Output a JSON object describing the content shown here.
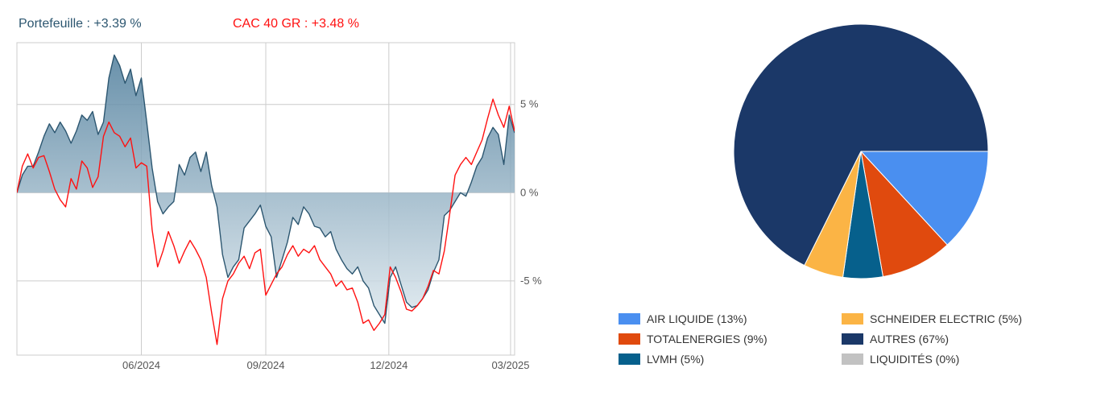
{
  "header": {
    "portfolio_label": "Portefeuille : +3.39 %",
    "benchmark_label": "CAC 40 GR : +3.48 %"
  },
  "colors": {
    "portfolio": "#2c5670",
    "benchmark": "#ff1111",
    "area_top": "#4f7e9c",
    "area_bottom": "#dfe9ef",
    "grid": "#cccccc",
    "axis_text": "#555555"
  },
  "chart_data": [
    {
      "type": "line",
      "series": [
        {
          "name": "Portefeuille : +3.39 %",
          "points": [
            [
              "2024-03-01",
              0.0
            ],
            [
              "2024-03-05",
              1.0
            ],
            [
              "2024-03-09",
              1.5
            ],
            [
              "2024-03-13",
              1.5
            ],
            [
              "2024-03-17",
              2.3
            ],
            [
              "2024-03-21",
              3.2
            ],
            [
              "2024-03-25",
              3.9
            ],
            [
              "2024-03-29",
              3.4
            ],
            [
              "2024-04-02",
              4.0
            ],
            [
              "2024-04-06",
              3.5
            ],
            [
              "2024-04-10",
              2.8
            ],
            [
              "2024-04-14",
              3.5
            ],
            [
              "2024-04-18",
              4.4
            ],
            [
              "2024-04-22",
              4.1
            ],
            [
              "2024-04-26",
              4.6
            ],
            [
              "2024-04-30",
              3.3
            ],
            [
              "2024-05-04",
              4.0
            ],
            [
              "2024-05-08",
              6.5
            ],
            [
              "2024-05-12",
              7.8
            ],
            [
              "2024-05-16",
              7.2
            ],
            [
              "2024-05-20",
              6.2
            ],
            [
              "2024-05-24",
              7.0
            ],
            [
              "2024-05-28",
              5.5
            ],
            [
              "2024-06-01",
              6.5
            ],
            [
              "2024-06-05",
              4.0
            ],
            [
              "2024-06-09",
              1.4
            ],
            [
              "2024-06-13",
              -0.5
            ],
            [
              "2024-06-17",
              -1.2
            ],
            [
              "2024-06-21",
              -0.8
            ],
            [
              "2024-06-25",
              -0.5
            ],
            [
              "2024-06-29",
              1.6
            ],
            [
              "2024-07-03",
              1.0
            ],
            [
              "2024-07-07",
              2.0
            ],
            [
              "2024-07-11",
              2.3
            ],
            [
              "2024-07-15",
              1.2
            ],
            [
              "2024-07-19",
              2.3
            ],
            [
              "2024-07-23",
              0.4
            ],
            [
              "2024-07-27",
              -0.8
            ],
            [
              "2024-07-31",
              -3.5
            ],
            [
              "2024-08-04",
              -4.8
            ],
            [
              "2024-08-08",
              -4.2
            ],
            [
              "2024-08-12",
              -3.8
            ],
            [
              "2024-08-16",
              -2.0
            ],
            [
              "2024-08-20",
              -1.6
            ],
            [
              "2024-08-24",
              -1.2
            ],
            [
              "2024-08-28",
              -0.7
            ],
            [
              "2024-09-01",
              -1.9
            ],
            [
              "2024-09-05",
              -2.5
            ],
            [
              "2024-09-09",
              -4.8
            ],
            [
              "2024-09-13",
              -3.8
            ],
            [
              "2024-09-17",
              -2.8
            ],
            [
              "2024-09-21",
              -1.4
            ],
            [
              "2024-09-25",
              -1.8
            ],
            [
              "2024-09-29",
              -0.8
            ],
            [
              "2024-10-03",
              -1.2
            ],
            [
              "2024-10-07",
              -1.9
            ],
            [
              "2024-10-11",
              -2.0
            ],
            [
              "2024-10-15",
              -2.5
            ],
            [
              "2024-10-19",
              -2.2
            ],
            [
              "2024-10-23",
              -3.2
            ],
            [
              "2024-10-27",
              -3.8
            ],
            [
              "2024-10-31",
              -4.3
            ],
            [
              "2024-11-04",
              -4.6
            ],
            [
              "2024-11-08",
              -4.2
            ],
            [
              "2024-11-12",
              -5.0
            ],
            [
              "2024-11-16",
              -5.4
            ],
            [
              "2024-11-20",
              -6.4
            ],
            [
              "2024-11-24",
              -6.9
            ],
            [
              "2024-11-28",
              -7.4
            ],
            [
              "2024-12-02",
              -4.8
            ],
            [
              "2024-12-06",
              -4.2
            ],
            [
              "2024-12-10",
              -5.2
            ],
            [
              "2024-12-14",
              -6.2
            ],
            [
              "2024-12-18",
              -6.5
            ],
            [
              "2024-12-22",
              -6.4
            ],
            [
              "2024-12-26",
              -6.0
            ],
            [
              "2024-12-30",
              -5.5
            ],
            [
              "2025-01-03",
              -4.5
            ],
            [
              "2025-01-07",
              -3.8
            ],
            [
              "2025-01-11",
              -1.3
            ],
            [
              "2025-01-15",
              -1.0
            ],
            [
              "2025-01-19",
              -0.5
            ],
            [
              "2025-01-23",
              0.0
            ],
            [
              "2025-01-27",
              -0.2
            ],
            [
              "2025-01-31",
              0.6
            ],
            [
              "2025-02-04",
              1.5
            ],
            [
              "2025-02-08",
              2.0
            ],
            [
              "2025-02-12",
              3.1
            ],
            [
              "2025-02-16",
              3.7
            ],
            [
              "2025-02-20",
              3.3
            ],
            [
              "2025-02-24",
              1.6
            ],
            [
              "2025-02-28",
              4.4
            ],
            [
              "2025-03-04",
              3.39
            ]
          ]
        },
        {
          "name": "CAC 40 GR : +3.48 %",
          "points": [
            [
              "2024-03-01",
              0.0
            ],
            [
              "2024-03-05",
              1.5
            ],
            [
              "2024-03-09",
              2.2
            ],
            [
              "2024-03-13",
              1.4
            ],
            [
              "2024-03-17",
              2.0
            ],
            [
              "2024-03-21",
              2.1
            ],
            [
              "2024-03-25",
              1.2
            ],
            [
              "2024-03-29",
              0.2
            ],
            [
              "2024-04-02",
              -0.4
            ],
            [
              "2024-04-06",
              -0.8
            ],
            [
              "2024-04-10",
              0.8
            ],
            [
              "2024-04-14",
              0.2
            ],
            [
              "2024-04-18",
              1.8
            ],
            [
              "2024-04-22",
              1.4
            ],
            [
              "2024-04-26",
              0.3
            ],
            [
              "2024-04-30",
              0.9
            ],
            [
              "2024-05-04",
              3.2
            ],
            [
              "2024-05-08",
              4.0
            ],
            [
              "2024-05-12",
              3.4
            ],
            [
              "2024-05-16",
              3.2
            ],
            [
              "2024-05-20",
              2.6
            ],
            [
              "2024-05-24",
              3.1
            ],
            [
              "2024-05-28",
              1.4
            ],
            [
              "2024-06-01",
              1.7
            ],
            [
              "2024-06-05",
              1.5
            ],
            [
              "2024-06-09",
              -2.1
            ],
            [
              "2024-06-13",
              -4.2
            ],
            [
              "2024-06-17",
              -3.3
            ],
            [
              "2024-06-21",
              -2.2
            ],
            [
              "2024-06-25",
              -3.0
            ],
            [
              "2024-06-29",
              -4.0
            ],
            [
              "2024-07-03",
              -3.3
            ],
            [
              "2024-07-07",
              -2.7
            ],
            [
              "2024-07-11",
              -3.2
            ],
            [
              "2024-07-15",
              -3.8
            ],
            [
              "2024-07-19",
              -4.8
            ],
            [
              "2024-07-23",
              -6.8
            ],
            [
              "2024-07-27",
              -8.6
            ],
            [
              "2024-07-31",
              -6.0
            ],
            [
              "2024-08-04",
              -5.0
            ],
            [
              "2024-08-08",
              -4.6
            ],
            [
              "2024-08-12",
              -4.0
            ],
            [
              "2024-08-16",
              -3.6
            ],
            [
              "2024-08-20",
              -4.3
            ],
            [
              "2024-08-24",
              -3.4
            ],
            [
              "2024-08-28",
              -3.2
            ],
            [
              "2024-09-01",
              -5.8
            ],
            [
              "2024-09-05",
              -5.2
            ],
            [
              "2024-09-09",
              -4.6
            ],
            [
              "2024-09-13",
              -4.2
            ],
            [
              "2024-09-17",
              -3.5
            ],
            [
              "2024-09-21",
              -3.0
            ],
            [
              "2024-09-25",
              -3.6
            ],
            [
              "2024-09-29",
              -3.2
            ],
            [
              "2024-10-03",
              -3.4
            ],
            [
              "2024-10-07",
              -3.0
            ],
            [
              "2024-10-11",
              -3.8
            ],
            [
              "2024-10-15",
              -4.2
            ],
            [
              "2024-10-19",
              -4.6
            ],
            [
              "2024-10-23",
              -5.3
            ],
            [
              "2024-10-27",
              -5.0
            ],
            [
              "2024-10-31",
              -5.5
            ],
            [
              "2024-11-04",
              -5.4
            ],
            [
              "2024-11-08",
              -6.2
            ],
            [
              "2024-11-12",
              -7.4
            ],
            [
              "2024-11-16",
              -7.2
            ],
            [
              "2024-11-20",
              -7.8
            ],
            [
              "2024-11-24",
              -7.4
            ],
            [
              "2024-11-28",
              -6.9
            ],
            [
              "2024-12-02",
              -4.2
            ],
            [
              "2024-12-06",
              -4.8
            ],
            [
              "2024-12-10",
              -5.6
            ],
            [
              "2024-12-14",
              -6.6
            ],
            [
              "2024-12-18",
              -6.7
            ],
            [
              "2024-12-22",
              -6.4
            ],
            [
              "2024-12-26",
              -6.0
            ],
            [
              "2024-12-30",
              -5.3
            ],
            [
              "2025-01-03",
              -4.4
            ],
            [
              "2025-01-07",
              -4.6
            ],
            [
              "2025-01-11",
              -3.3
            ],
            [
              "2025-01-15",
              -1.2
            ],
            [
              "2025-01-19",
              1.0
            ],
            [
              "2025-01-23",
              1.6
            ],
            [
              "2025-01-27",
              2.0
            ],
            [
              "2025-01-31",
              1.6
            ],
            [
              "2025-02-04",
              2.3
            ],
            [
              "2025-02-08",
              3.0
            ],
            [
              "2025-02-12",
              4.2
            ],
            [
              "2025-02-16",
              5.3
            ],
            [
              "2025-02-20",
              4.4
            ],
            [
              "2025-02-24",
              3.7
            ],
            [
              "2025-02-28",
              4.9
            ],
            [
              "2025-03-04",
              3.48
            ]
          ]
        }
      ],
      "x_ticks": [
        {
          "date": "2024-06-01",
          "label": "06/2024"
        },
        {
          "date": "2024-09-01",
          "label": "09/2024"
        },
        {
          "date": "2024-12-01",
          "label": "12/2024"
        },
        {
          "date": "2025-03-01",
          "label": "03/2025"
        }
      ],
      "xlim": [
        "2024-03-01",
        "2025-03-04"
      ],
      "y_ticks": [
        {
          "value": 5,
          "label": "5 %"
        },
        {
          "value": 0,
          "label": "0 %"
        },
        {
          "value": -5,
          "label": "-5 %"
        }
      ],
      "ylim": [
        -9.2,
        8.5
      ],
      "grid": true
    },
    {
      "type": "pie",
      "slices": [
        {
          "label": "AIR LIQUIDE (13%)",
          "value": 13,
          "color": "#4a8ff0"
        },
        {
          "label": "TOTALENERGIES (9%)",
          "value": 9,
          "color": "#e04a0e"
        },
        {
          "label": "LVMH (5%)",
          "value": 5,
          "color": "#06608c"
        },
        {
          "label": "SCHNEIDER ELECTRIC (5%)",
          "value": 5,
          "color": "#fbb445"
        },
        {
          "label": "AUTRES (67%)",
          "value": 67,
          "color": "#1b3868"
        },
        {
          "label": "LIQUIDITÉS (0%)",
          "value": 0,
          "color": "#c2c2c2"
        }
      ],
      "legend": "bottom"
    }
  ]
}
